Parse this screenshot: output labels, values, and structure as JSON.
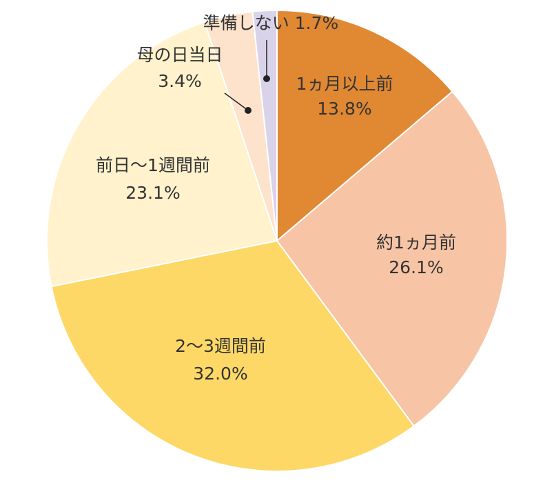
{
  "chart_data": {
    "type": "pie",
    "title": "",
    "start_angle_deg": 0,
    "direction": "clockwise",
    "slices": [
      {
        "label": "1ヵ月以上前",
        "value": 13.8,
        "value_label": "13.8%",
        "color": "#E08832"
      },
      {
        "label": "約1ヵ月前",
        "value": 26.1,
        "value_label": "26.1%",
        "color": "#F7C4A5"
      },
      {
        "label": "2〜3週間前",
        "value": 32.0,
        "value_label": "32.0%",
        "color": "#FDD867"
      },
      {
        "label": "前日〜1週間前",
        "value": 23.1,
        "value_label": "23.1%",
        "color": "#FFF2CC"
      },
      {
        "label": "母の日当日",
        "value": 3.4,
        "value_label": "3.4%",
        "color": "#FDE3CC"
      },
      {
        "label": "準備しない",
        "value": 1.7,
        "value_label": "1.7%",
        "color": "#D9D3EA"
      }
    ]
  }
}
